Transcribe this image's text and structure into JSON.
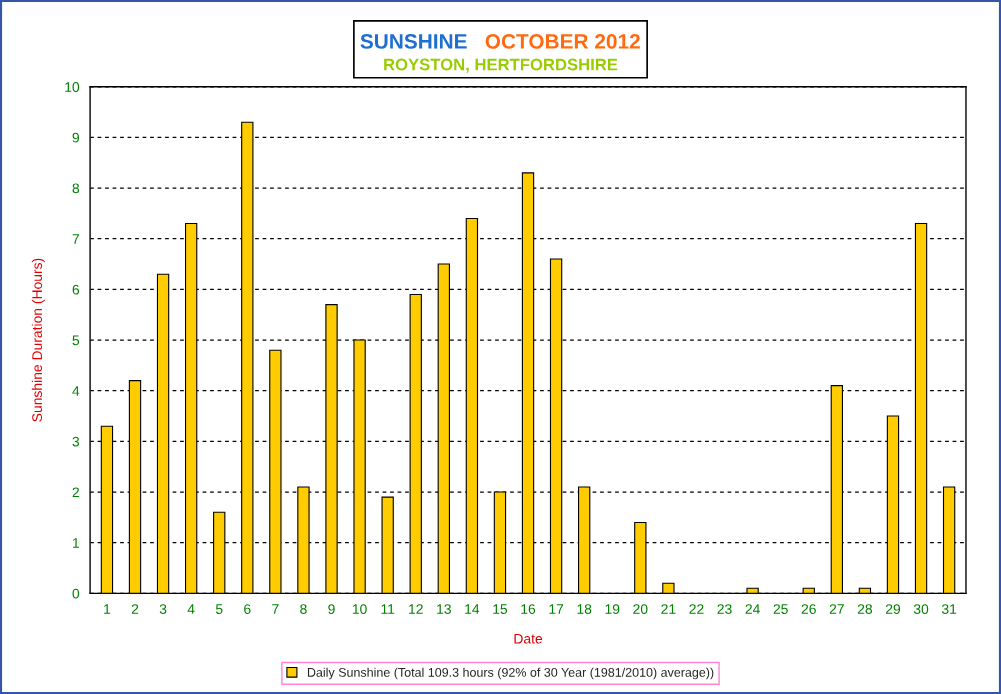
{
  "chart_data": {
    "type": "bar",
    "title": "SUNSHINE   OCTOBER 2012",
    "subtitle": "ROYSTON, HERTFORDSHIRE",
    "xlabel": "Date",
    "ylabel": "Sunshine Duration (Hours)",
    "categories": [
      "1",
      "2",
      "3",
      "4",
      "5",
      "6",
      "7",
      "8",
      "9",
      "10",
      "11",
      "12",
      "13",
      "14",
      "15",
      "16",
      "17",
      "18",
      "19",
      "20",
      "21",
      "22",
      "23",
      "24",
      "25",
      "26",
      "27",
      "28",
      "29",
      "30",
      "31"
    ],
    "series": [
      {
        "name": "Daily Sunshine (Total 109.3 hours (92% of 30 Year (1981/2010) average))",
        "color": "#ffcc00",
        "values": [
          3.3,
          4.2,
          6.3,
          7.3,
          1.6,
          9.3,
          4.8,
          2.1,
          5.7,
          5.0,
          1.9,
          5.9,
          6.5,
          7.4,
          2.0,
          8.3,
          6.6,
          2.1,
          0,
          1.4,
          0.2,
          0,
          0,
          0.1,
          0,
          0.1,
          4.1,
          0.1,
          3.5,
          7.3,
          2.1
        ]
      }
    ],
    "ylim": [
      0,
      10
    ],
    "yticks": [
      0,
      1,
      2,
      3,
      4,
      5,
      6,
      7,
      8,
      9,
      10
    ],
    "grid": "y",
    "legend": "bottom"
  }
}
